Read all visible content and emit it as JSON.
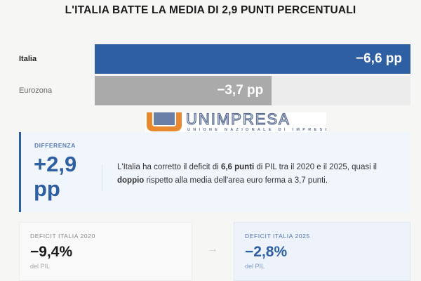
{
  "title": "L'ITALIA BATTE LA MEDIA DI 2,9 PUNTI PERCENTUALI",
  "chart_data": {
    "type": "bar",
    "orientation": "horizontal",
    "categories": [
      "Italia",
      "Eurozona"
    ],
    "values": [
      -6.6,
      -3.7
    ],
    "value_labels": [
      "−6,6 pp",
      "−3,7 pp"
    ],
    "unit": "pp",
    "colors": [
      "#2f5fa3",
      "#aaaaaa"
    ],
    "xlim": [
      0,
      6.6
    ]
  },
  "logo": {
    "name": "UNIMPRESA",
    "subtitle": "UNIONE NAZIONALE DI IMPRESE"
  },
  "difference": {
    "label": "DIFFERENZA",
    "value_line1": "+2,9",
    "value_line2": "pp",
    "text_1": "L'Italia ha corretto il deficit di ",
    "text_bold1": "6,6 punti",
    "text_2": " di PIL tra il 2020 e il 2025, quasi il ",
    "text_bold2": "doppio",
    "text_3": " rispetto alla media dell'area euro ferma a 3,7 punti."
  },
  "stats": [
    {
      "label": "DEFICIT ITALIA 2020",
      "value": "−9,4%",
      "unit": "del PIL"
    },
    {
      "label": "DEFICIT ITALIA 2025",
      "value": "−2,8%",
      "unit": "del PIL"
    }
  ],
  "arrow": "→"
}
